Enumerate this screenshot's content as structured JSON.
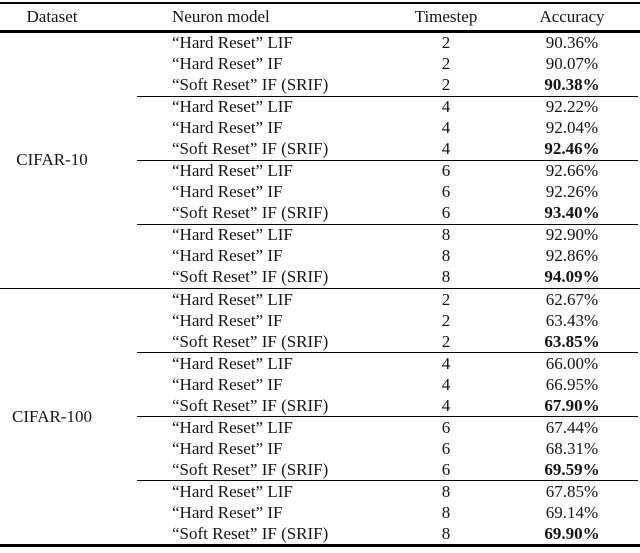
{
  "colors": {
    "background": "#ffffff",
    "rule": "#000000",
    "text": "#141414"
  },
  "table": {
    "columns": [
      "Dataset",
      "Neuron model",
      "Timestep",
      "Accuracy"
    ],
    "groups": [
      {
        "dataset": "CIFAR-10",
        "subgroups": [
          {
            "rows": [
              {
                "model": "“Hard Reset” LIF",
                "timestep": "2",
                "accuracy": "90.36%",
                "bold": false
              },
              {
                "model": "“Hard Reset” IF",
                "timestep": "2",
                "accuracy": "90.07%",
                "bold": false
              },
              {
                "model": "“Soft Reset” IF (SRIF)",
                "timestep": "2",
                "accuracy": "90.38%",
                "bold": true
              }
            ]
          },
          {
            "rows": [
              {
                "model": "“Hard Reset” LIF",
                "timestep": "4",
                "accuracy": "92.22%",
                "bold": false
              },
              {
                "model": "“Hard Reset” IF",
                "timestep": "4",
                "accuracy": "92.04%",
                "bold": false
              },
              {
                "model": "“Soft Reset” IF (SRIF)",
                "timestep": "4",
                "accuracy": "92.46%",
                "bold": true
              }
            ]
          },
          {
            "rows": [
              {
                "model": "“Hard Reset” LIF",
                "timestep": "6",
                "accuracy": "92.66%",
                "bold": false
              },
              {
                "model": "“Hard Reset” IF",
                "timestep": "6",
                "accuracy": "92.26%",
                "bold": false
              },
              {
                "model": "“Soft Reset” IF (SRIF)",
                "timestep": "6",
                "accuracy": "93.40%",
                "bold": true
              }
            ]
          },
          {
            "rows": [
              {
                "model": "“Hard Reset” LIF",
                "timestep": "8",
                "accuracy": "92.90%",
                "bold": false
              },
              {
                "model": "“Hard Reset” IF",
                "timestep": "8",
                "accuracy": "92.86%",
                "bold": false
              },
              {
                "model": "“Soft Reset” IF (SRIF)",
                "timestep": "8",
                "accuracy": "94.09%",
                "bold": true
              }
            ]
          }
        ]
      },
      {
        "dataset": "CIFAR-100",
        "subgroups": [
          {
            "rows": [
              {
                "model": "“Hard Reset” LIF",
                "timestep": "2",
                "accuracy": "62.67%",
                "bold": false
              },
              {
                "model": "“Hard Reset” IF",
                "timestep": "2",
                "accuracy": "63.43%",
                "bold": false
              },
              {
                "model": "“Soft Reset” IF (SRIF)",
                "timestep": "2",
                "accuracy": "63.85%",
                "bold": true
              }
            ]
          },
          {
            "rows": [
              {
                "model": "“Hard Reset” LIF",
                "timestep": "4",
                "accuracy": "66.00%",
                "bold": false
              },
              {
                "model": "“Hard Reset” IF",
                "timestep": "4",
                "accuracy": "66.95%",
                "bold": false
              },
              {
                "model": "“Soft Reset” IF (SRIF)",
                "timestep": "4",
                "accuracy": "67.90%",
                "bold": true
              }
            ]
          },
          {
            "rows": [
              {
                "model": "“Hard Reset” LIF",
                "timestep": "6",
                "accuracy": "67.44%",
                "bold": false
              },
              {
                "model": "“Hard Reset” IF",
                "timestep": "6",
                "accuracy": "68.31%",
                "bold": false
              },
              {
                "model": "“Soft Reset” IF (SRIF)",
                "timestep": "6",
                "accuracy": "69.59%",
                "bold": true
              }
            ]
          },
          {
            "rows": [
              {
                "model": "“Hard Reset” LIF",
                "timestep": "8",
                "accuracy": "67.85%",
                "bold": false
              },
              {
                "model": "“Hard Reset” IF",
                "timestep": "8",
                "accuracy": "69.14%",
                "bold": false
              },
              {
                "model": "“Soft Reset” IF (SRIF)",
                "timestep": "8",
                "accuracy": "69.90%",
                "bold": true
              }
            ]
          }
        ]
      }
    ]
  }
}
